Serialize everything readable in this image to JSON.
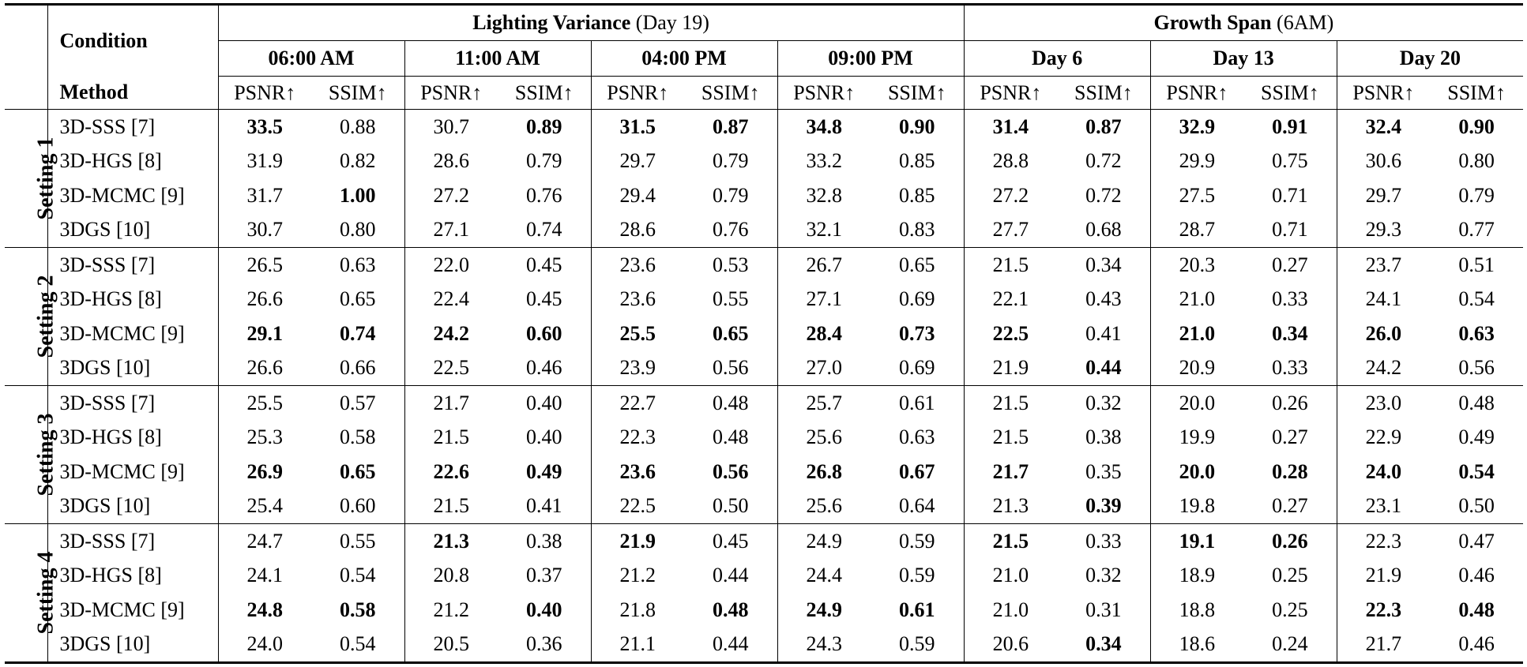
{
  "header": {
    "condition": "Condition",
    "method": "Method",
    "group1": {
      "title": "Lighting Variance",
      "suffix": "(Day 19)"
    },
    "group2": {
      "title": "Growth Span",
      "suffix": "(6AM)"
    },
    "subgroups": [
      "06:00 AM",
      "11:00 AM",
      "04:00 PM",
      "09:00 PM",
      "Day 6",
      "Day 13",
      "Day 20"
    ],
    "metrics": [
      "PSNR↑",
      "SSIM↑"
    ]
  },
  "settings": [
    {
      "label": "Setting 1",
      "rows": [
        {
          "method": "3D-SSS [7]",
          "values": [
            "33.5",
            "0.88",
            "30.7",
            "0.89",
            "31.5",
            "0.87",
            "34.8",
            "0.90",
            "31.4",
            "0.87",
            "32.9",
            "0.91",
            "32.4",
            "0.90"
          ],
          "bold": [
            0,
            3,
            4,
            5,
            6,
            7,
            8,
            9,
            10,
            11,
            12,
            13
          ]
        },
        {
          "method": "3D-HGS [8]",
          "values": [
            "31.9",
            "0.82",
            "28.6",
            "0.79",
            "29.7",
            "0.79",
            "33.2",
            "0.85",
            "28.8",
            "0.72",
            "29.9",
            "0.75",
            "30.6",
            "0.80"
          ],
          "bold": []
        },
        {
          "method": "3D-MCMC [9]",
          "values": [
            "31.7",
            "1.00",
            "27.2",
            "0.76",
            "29.4",
            "0.79",
            "32.8",
            "0.85",
            "27.2",
            "0.72",
            "27.5",
            "0.71",
            "29.7",
            "0.79"
          ],
          "bold": [
            1
          ]
        },
        {
          "method": "3DGS [10]",
          "values": [
            "30.7",
            "0.80",
            "27.1",
            "0.74",
            "28.6",
            "0.76",
            "32.1",
            "0.83",
            "27.7",
            "0.68",
            "28.7",
            "0.71",
            "29.3",
            "0.77"
          ],
          "bold": []
        }
      ]
    },
    {
      "label": "Setting 2",
      "rows": [
        {
          "method": "3D-SSS [7]",
          "values": [
            "26.5",
            "0.63",
            "22.0",
            "0.45",
            "23.6",
            "0.53",
            "26.7",
            "0.65",
            "21.5",
            "0.34",
            "20.3",
            "0.27",
            "23.7",
            "0.51"
          ],
          "bold": []
        },
        {
          "method": "3D-HGS [8]",
          "values": [
            "26.6",
            "0.65",
            "22.4",
            "0.45",
            "23.6",
            "0.55",
            "27.1",
            "0.69",
            "22.1",
            "0.43",
            "21.0",
            "0.33",
            "24.1",
            "0.54"
          ],
          "bold": []
        },
        {
          "method": "3D-MCMC [9]",
          "values": [
            "29.1",
            "0.74",
            "24.2",
            "0.60",
            "25.5",
            "0.65",
            "28.4",
            "0.73",
            "22.5",
            "0.41",
            "21.0",
            "0.34",
            "26.0",
            "0.63"
          ],
          "bold": [
            0,
            1,
            2,
            3,
            4,
            5,
            6,
            7,
            8,
            10,
            11,
            12,
            13
          ]
        },
        {
          "method": "3DGS [10]",
          "values": [
            "26.6",
            "0.66",
            "22.5",
            "0.46",
            "23.9",
            "0.56",
            "27.0",
            "0.69",
            "21.9",
            "0.44",
            "20.9",
            "0.33",
            "24.2",
            "0.56"
          ],
          "bold": [
            9
          ]
        }
      ]
    },
    {
      "label": "Setting 3",
      "rows": [
        {
          "method": "3D-SSS [7]",
          "values": [
            "25.5",
            "0.57",
            "21.7",
            "0.40",
            "22.7",
            "0.48",
            "25.7",
            "0.61",
            "21.5",
            "0.32",
            "20.0",
            "0.26",
            "23.0",
            "0.48"
          ],
          "bold": []
        },
        {
          "method": "3D-HGS [8]",
          "values": [
            "25.3",
            "0.58",
            "21.5",
            "0.40",
            "22.3",
            "0.48",
            "25.6",
            "0.63",
            "21.5",
            "0.38",
            "19.9",
            "0.27",
            "22.9",
            "0.49"
          ],
          "bold": []
        },
        {
          "method": "3D-MCMC [9]",
          "values": [
            "26.9",
            "0.65",
            "22.6",
            "0.49",
            "23.6",
            "0.56",
            "26.8",
            "0.67",
            "21.7",
            "0.35",
            "20.0",
            "0.28",
            "24.0",
            "0.54"
          ],
          "bold": [
            0,
            1,
            2,
            3,
            4,
            5,
            6,
            7,
            8,
            10,
            11,
            12,
            13
          ]
        },
        {
          "method": "3DGS [10]",
          "values": [
            "25.4",
            "0.60",
            "21.5",
            "0.41",
            "22.5",
            "0.50",
            "25.6",
            "0.64",
            "21.3",
            "0.39",
            "19.8",
            "0.27",
            "23.1",
            "0.50"
          ],
          "bold": [
            9
          ]
        }
      ]
    },
    {
      "label": "Setting 4",
      "rows": [
        {
          "method": "3D-SSS [7]",
          "values": [
            "24.7",
            "0.55",
            "21.3",
            "0.38",
            "21.9",
            "0.45",
            "24.9",
            "0.59",
            "21.5",
            "0.33",
            "19.1",
            "0.26",
            "22.3",
            "0.47"
          ],
          "bold": [
            2,
            4,
            8,
            10,
            11
          ]
        },
        {
          "method": "3D-HGS [8]",
          "values": [
            "24.1",
            "0.54",
            "20.8",
            "0.37",
            "21.2",
            "0.44",
            "24.4",
            "0.59",
            "21.0",
            "0.32",
            "18.9",
            "0.25",
            "21.9",
            "0.46"
          ],
          "bold": []
        },
        {
          "method": "3D-MCMC [9]",
          "values": [
            "24.8",
            "0.58",
            "21.2",
            "0.40",
            "21.8",
            "0.48",
            "24.9",
            "0.61",
            "21.0",
            "0.31",
            "18.8",
            "0.25",
            "22.3",
            "0.48"
          ],
          "bold": [
            0,
            1,
            3,
            5,
            6,
            7,
            12,
            13
          ]
        },
        {
          "method": "3DGS [10]",
          "values": [
            "24.0",
            "0.54",
            "20.5",
            "0.36",
            "21.1",
            "0.44",
            "24.3",
            "0.59",
            "20.6",
            "0.34",
            "18.6",
            "0.24",
            "21.7",
            "0.46"
          ],
          "bold": [
            9
          ]
        }
      ]
    }
  ]
}
